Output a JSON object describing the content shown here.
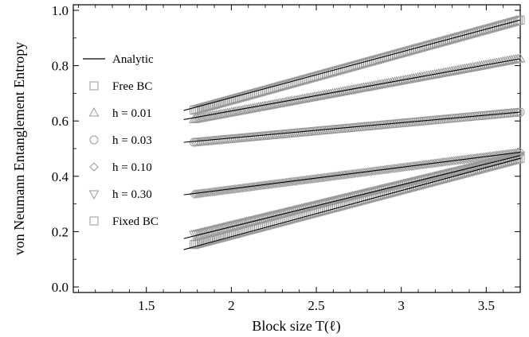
{
  "chart_data": {
    "type": "scatter",
    "title": "",
    "xlabel": "Block size T(ℓ)",
    "ylabel": "von Neumann Entanglement Entropy",
    "xlim": [
      1.07,
      3.7
    ],
    "ylim": [
      -0.02,
      1.02
    ],
    "xticks": [
      1.5,
      2,
      2.5,
      3,
      3.5
    ],
    "xtick_labels": [
      "1.5",
      "2",
      "2.5",
      "3",
      "3.5"
    ],
    "yticks": [
      0.0,
      0.2,
      0.4,
      0.6,
      0.8,
      1.0
    ],
    "ytick_labels": [
      "0.0",
      "0.2",
      "0.4",
      "0.6",
      "0.8",
      "1.0"
    ],
    "grid": false,
    "legend_position": "left",
    "legend": [
      {
        "label": "Analytic",
        "marker": "line"
      },
      {
        "label": "Free BC",
        "marker": "square"
      },
      {
        "label": "h = 0.01",
        "marker": "triangle-up"
      },
      {
        "label": "h = 0.03",
        "marker": "circle"
      },
      {
        "label": "h = 0.10",
        "marker": "diamond"
      },
      {
        "label": "h = 0.30",
        "marker": "triangle-down"
      },
      {
        "label": "Fixed BC",
        "marker": "square"
      }
    ],
    "colors": {
      "markers": "#9a9a9a",
      "analytic": "#000000"
    },
    "analytic_lines": [
      {
        "x": [
          1.72,
          3.7
        ],
        "y": [
          0.638,
          0.965
        ]
      },
      {
        "x": [
          1.72,
          3.7
        ],
        "y": [
          0.605,
          0.825
        ]
      },
      {
        "x": [
          1.72,
          3.7
        ],
        "y": [
          0.523,
          0.632
        ]
      },
      {
        "x": [
          1.72,
          3.7
        ],
        "y": [
          0.333,
          0.487
        ]
      },
      {
        "x": [
          1.72,
          3.7
        ],
        "y": [
          0.175,
          0.475
        ]
      },
      {
        "x": [
          1.72,
          3.7
        ],
        "y": [
          0.135,
          0.465
        ]
      }
    ],
    "series": [
      {
        "name": "Free BC",
        "marker": "square",
        "x0": 1.78,
        "y0": 0.639,
        "x1": 3.7,
        "y1": 0.965
      },
      {
        "name": "h = 0.01",
        "marker": "triangle-up",
        "x0": 1.78,
        "y0": 0.605,
        "x1": 3.7,
        "y1": 0.825
      },
      {
        "name": "h = 0.03",
        "marker": "circle",
        "x0": 1.78,
        "y0": 0.523,
        "x1": 3.7,
        "y1": 0.632
      },
      {
        "name": "h = 0.10",
        "marker": "diamond",
        "x0": 1.78,
        "y0": 0.335,
        "x1": 3.7,
        "y1": 0.487
      },
      {
        "name": "h = 0.30",
        "marker": "triangle-down",
        "x0": 1.78,
        "y0": 0.19,
        "x1": 3.7,
        "y1": 0.475
      },
      {
        "name": "Fixed BC",
        "marker": "square",
        "x0": 1.78,
        "y0": 0.153,
        "x1": 3.7,
        "y1": 0.465
      }
    ]
  }
}
